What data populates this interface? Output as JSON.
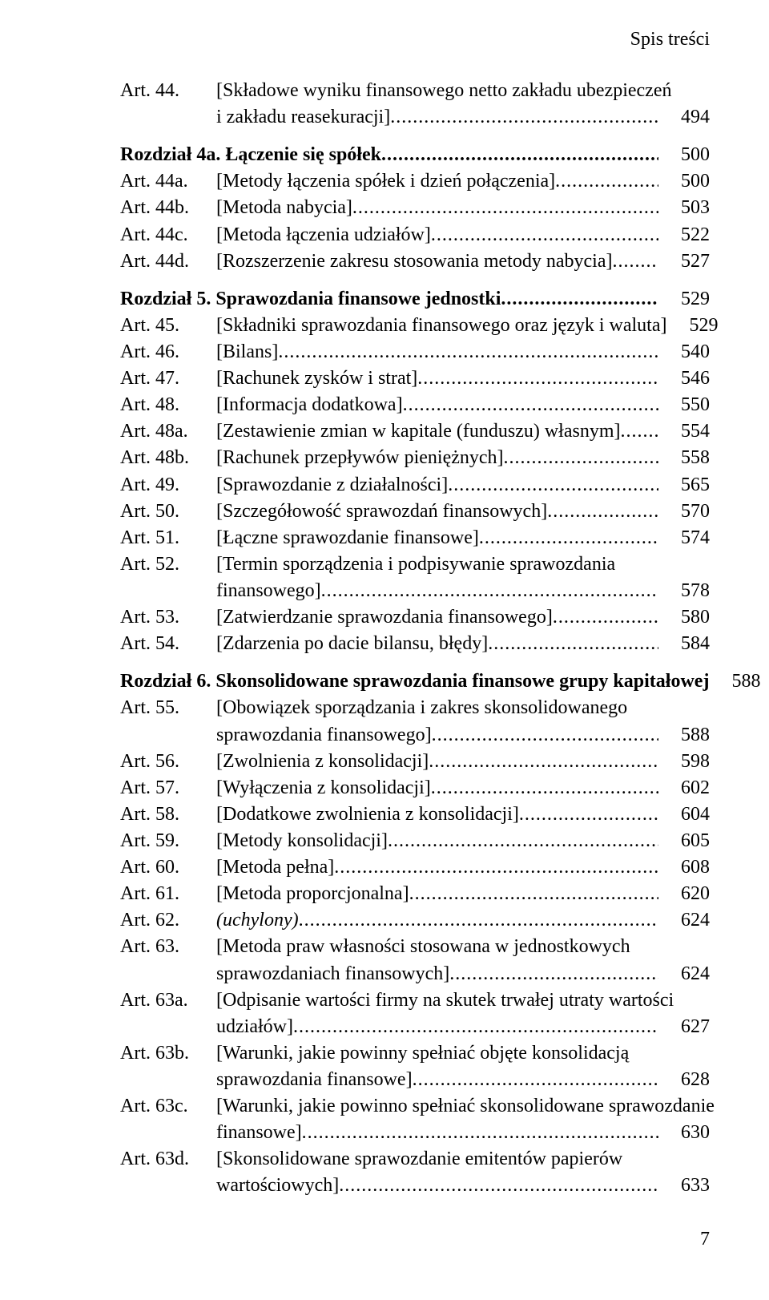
{
  "header": "Spis treści",
  "footer_page": "7",
  "entries": [
    {
      "type": "art_multi",
      "art": "Art. 44.",
      "lines": [
        "[Składowe wyniku finansowego netto zakładu ubezpieczeń",
        "i zakładu reasekuracji]"
      ],
      "page": "494"
    },
    {
      "type": "section",
      "title": "Rozdział 4a. Łączenie się spółek",
      "page": "500"
    },
    {
      "type": "art",
      "art": "Art. 44a.",
      "title": "[Metody łączenia spółek i dzień połączenia]",
      "page": "500"
    },
    {
      "type": "art",
      "art": "Art. 44b.",
      "title": "[Metoda nabycia]",
      "page": "503"
    },
    {
      "type": "art",
      "art": "Art. 44c.",
      "title": "[Metoda łączenia udziałów]",
      "page": "522"
    },
    {
      "type": "art",
      "art": "Art. 44d.",
      "title": "[Rozszerzenie zakresu stosowania metody nabycia]",
      "page": "527"
    },
    {
      "type": "section",
      "title": "Rozdział 5. Sprawozdania finansowe jednostki",
      "page": "529"
    },
    {
      "type": "art",
      "art": "Art. 45.",
      "title": "[Składniki sprawozdania finansowego oraz język i waluta]",
      "page": "529"
    },
    {
      "type": "art",
      "art": "Art. 46.",
      "title": "[Bilans]",
      "page": "540"
    },
    {
      "type": "art",
      "art": "Art. 47.",
      "title": "[Rachunek zysków i strat]",
      "page": "546"
    },
    {
      "type": "art",
      "art": "Art. 48.",
      "title": "[Informacja dodatkowa]",
      "page": "550"
    },
    {
      "type": "art",
      "art": "Art. 48a.",
      "title": "[Zestawienie zmian w kapitale (funduszu) własnym]",
      "page": "554"
    },
    {
      "type": "art",
      "art": "Art. 48b.",
      "title": "[Rachunek przepływów pieniężnych]",
      "page": "558"
    },
    {
      "type": "art",
      "art": "Art. 49.",
      "title": "[Sprawozdanie z działalności]",
      "page": "565"
    },
    {
      "type": "art",
      "art": "Art. 50.",
      "title": "[Szczegółowość sprawozdań finansowych]",
      "page": "570"
    },
    {
      "type": "art",
      "art": "Art. 51.",
      "title": "[Łączne sprawozdanie finansowe]",
      "page": "574"
    },
    {
      "type": "art_multi",
      "art": "Art. 52.",
      "lines": [
        "[Termin sporządzenia i podpisywanie sprawozdania",
        "finansowego]"
      ],
      "page": "578"
    },
    {
      "type": "art",
      "art": "Art. 53.",
      "title": "[Zatwierdzanie sprawozdania finansowego]",
      "page": "580"
    },
    {
      "type": "art",
      "art": "Art. 54.",
      "title": "[Zdarzenia po dacie bilansu, błędy]",
      "page": "584"
    },
    {
      "type": "section_gap",
      "title": "Rozdział 6. Skonsolidowane sprawozdania finansowe grupy kapitałowej",
      "page": "588"
    },
    {
      "type": "art_multi",
      "art": "Art. 55.",
      "lines": [
        "[Obowiązek sporządzania i zakres skonsolidowanego",
        "sprawozdania finansowego]"
      ],
      "page": "588"
    },
    {
      "type": "art",
      "art": "Art. 56.",
      "title": "[Zwolnienia z konsolidacji]",
      "page": "598"
    },
    {
      "type": "art",
      "art": "Art. 57.",
      "title": "[Wyłączenia z konsolidacji]",
      "page": "602"
    },
    {
      "type": "art",
      "art": "Art. 58.",
      "title": "[Dodatkowe zwolnienia z konsolidacji]",
      "page": "604"
    },
    {
      "type": "art",
      "art": "Art. 59.",
      "title": "[Metody konsolidacji]",
      "page": "605"
    },
    {
      "type": "art",
      "art": "Art. 60.",
      "title": "[Metoda pełna]",
      "page": "608"
    },
    {
      "type": "art",
      "art": "Art. 61.",
      "title": "[Metoda proporcjonalna]",
      "page": "620"
    },
    {
      "type": "art_italic",
      "art": "Art. 62.",
      "title": "(uchylony)",
      "page": "624"
    },
    {
      "type": "art_multi",
      "art": "Art. 63.",
      "lines": [
        "[Metoda praw własności stosowana w jednostkowych",
        "sprawozdaniach finansowych]"
      ],
      "page": "624"
    },
    {
      "type": "art_multi",
      "art": "Art. 63a.",
      "lines": [
        "[Odpisanie wartości firmy na skutek trwałej utraty wartości",
        "udziałów]"
      ],
      "page": "627"
    },
    {
      "type": "art_multi",
      "art": "Art. 63b.",
      "lines": [
        "[Warunki, jakie powinny spełniać objęte konsolidacją",
        "sprawozdania finansowe]"
      ],
      "page": "628"
    },
    {
      "type": "art_multi",
      "art": "Art. 63c.",
      "lines": [
        "[Warunki, jakie powinno spełniać skonsolidowane sprawozdanie",
        "finansowe]"
      ],
      "page": "630"
    },
    {
      "type": "art_multi",
      "art": "Art. 63d.",
      "lines": [
        "[Skonsolidowane sprawozdanie emitentów papierów",
        "wartościowych]"
      ],
      "page": "633"
    }
  ]
}
